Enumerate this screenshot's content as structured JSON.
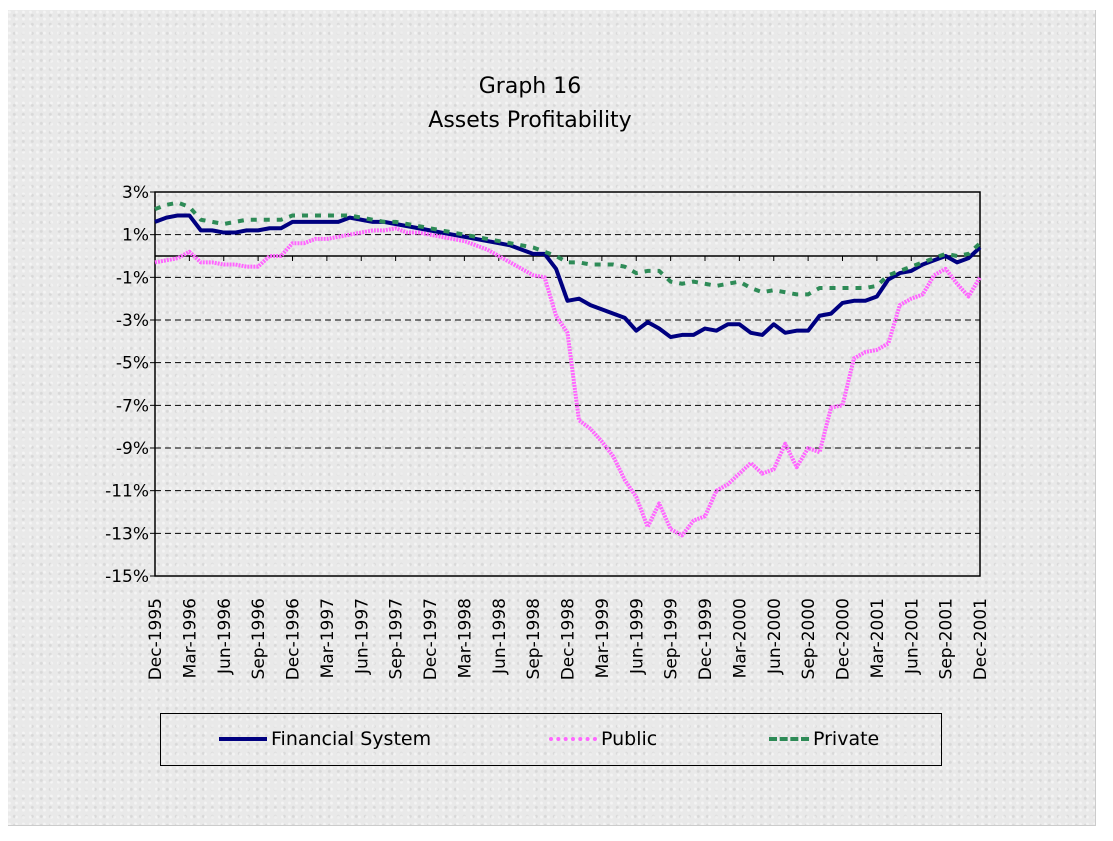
{
  "chart_data": {
    "type": "line",
    "title": "Graph 16",
    "subtitle": "Assets Profitability",
    "xlabel": "",
    "ylabel": "",
    "ylim": [
      -15,
      3
    ],
    "y_ticks": [
      "3%",
      "1%",
      "-1%",
      "-3%",
      "-5%",
      "-7%",
      "-9%",
      "-11%",
      "-13%",
      "-15%"
    ],
    "y_tick_values": [
      3,
      1,
      -1,
      -3,
      -5,
      -7,
      -9,
      -11,
      -13,
      -15
    ],
    "x_start": "Dec-1995",
    "x_frequency": "monthly",
    "x_tick_labels": [
      "Dec-1995",
      "Mar-1996",
      "Jun-1996",
      "Sep-1996",
      "Dec-1996",
      "Mar-1997",
      "Jun-1997",
      "Sep-1997",
      "Dec-1997",
      "Mar-1998",
      "Jun-1998",
      "Sep-1998",
      "Dec-1998",
      "Mar-1999",
      "Jun-1999",
      "Sep-1999",
      "Dec-1999",
      "Mar-2000",
      "Jun-2000",
      "Sep-2000",
      "Dec-2000",
      "Mar-2001",
      "Jun-2001",
      "Sep-2001",
      "Dec-2001"
    ],
    "grid": "horizontal dashed",
    "legend_position": "bottom",
    "series": [
      {
        "name": "Financial System",
        "color": "#000080",
        "style": "solid",
        "values": [
          1.6,
          1.8,
          1.9,
          1.9,
          1.2,
          1.2,
          1.1,
          1.1,
          1.2,
          1.2,
          1.3,
          1.3,
          1.6,
          1.6,
          1.6,
          1.6,
          1.6,
          1.8,
          1.7,
          1.6,
          1.6,
          1.5,
          1.4,
          1.3,
          1.2,
          1.1,
          1.0,
          0.9,
          0.8,
          0.7,
          0.6,
          0.5,
          0.3,
          0.1,
          0.1,
          -0.6,
          -2.1,
          -2.0,
          -2.3,
          -2.5,
          -2.7,
          -2.9,
          -3.5,
          -3.1,
          -3.4,
          -3.8,
          -3.7,
          -3.7,
          -3.4,
          -3.5,
          -3.2,
          -3.2,
          -3.6,
          -3.7,
          -3.2,
          -3.6,
          -3.5,
          -3.5,
          -2.8,
          -2.7,
          -2.2,
          -2.1,
          -2.1,
          -1.9,
          -1.1,
          -0.8,
          -0.7,
          -0.4,
          -0.2,
          0.0,
          -0.3,
          -0.1,
          0.4
        ]
      },
      {
        "name": "Public",
        "color": "#ff66ff",
        "style": "hatched",
        "values": [
          -0.3,
          -0.2,
          -0.1,
          0.2,
          -0.3,
          -0.3,
          -0.4,
          -0.4,
          -0.5,
          -0.5,
          0.0,
          0.0,
          0.6,
          0.6,
          0.8,
          0.8,
          0.9,
          1.0,
          1.1,
          1.2,
          1.2,
          1.3,
          1.1,
          1.1,
          1.0,
          0.9,
          0.8,
          0.7,
          0.5,
          0.3,
          0.0,
          -0.3,
          -0.6,
          -0.9,
          -1.0,
          -2.8,
          -3.6,
          -7.7,
          -8.1,
          -8.7,
          -9.4,
          -10.5,
          -11.3,
          -12.7,
          -11.6,
          -12.8,
          -13.1,
          -12.4,
          -12.2,
          -11.0,
          -10.7,
          -10.2,
          -9.7,
          -10.2,
          -10.0,
          -8.8,
          -9.9,
          -9.0,
          -9.2,
          -7.1,
          -7.0,
          -4.8,
          -4.5,
          -4.4,
          -4.1,
          -2.3,
          -2.0,
          -1.8,
          -0.9,
          -0.6,
          -1.3,
          -1.9,
          -1.0
        ]
      },
      {
        "name": "Private",
        "color": "#2e8b57",
        "style": "dotted",
        "values": [
          2.2,
          2.4,
          2.5,
          2.3,
          1.7,
          1.6,
          1.5,
          1.6,
          1.7,
          1.7,
          1.7,
          1.7,
          1.9,
          1.9,
          1.9,
          1.9,
          1.9,
          1.9,
          1.8,
          1.7,
          1.6,
          1.6,
          1.5,
          1.4,
          1.3,
          1.2,
          1.1,
          1.0,
          0.9,
          0.8,
          0.7,
          0.6,
          0.5,
          0.4,
          0.2,
          0.0,
          -0.3,
          -0.3,
          -0.4,
          -0.4,
          -0.4,
          -0.5,
          -0.8,
          -0.7,
          -0.7,
          -1.2,
          -1.3,
          -1.2,
          -1.3,
          -1.4,
          -1.3,
          -1.2,
          -1.5,
          -1.7,
          -1.6,
          -1.7,
          -1.8,
          -1.8,
          -1.5,
          -1.5,
          -1.5,
          -1.5,
          -1.5,
          -1.4,
          -0.9,
          -0.7,
          -0.5,
          -0.3,
          -0.1,
          0.1,
          0.0,
          0.1,
          0.6
        ]
      }
    ]
  }
}
